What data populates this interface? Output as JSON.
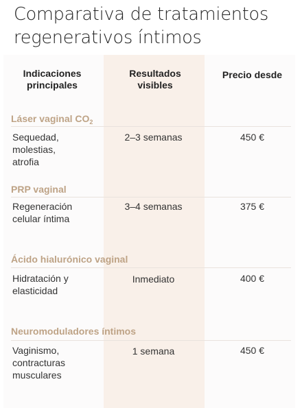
{
  "title": "Comparativa de tratamientos\nregenerativos íntimos",
  "columns": {
    "indications": "Indicaciones\nprincipales",
    "results": "Resultados\nvisibles",
    "price": "Precio desde"
  },
  "treatments": [
    {
      "name": "Láser vaginal CO",
      "name_sub": "2",
      "indications": "Sequedad,\nmolestias,\natrofia",
      "results": "2–3 semanas",
      "price": "450 €"
    },
    {
      "name": "PRP vaginal",
      "indications": "Regeneración\ncelular íntima",
      "results": "3–4 semanas",
      "price": "375 €"
    },
    {
      "name": "Ácido hialurónico vaginal",
      "indications": "Hidratación y\nelasticidad",
      "results": "Inmediato",
      "price": "400 €"
    },
    {
      "name": "Neuromoduladores íntimos",
      "indications": "Vaginismo,\ncontracturas\nmusculares",
      "results": "1 semana",
      "price": "450 €"
    }
  ],
  "colors": {
    "section_name": "#bea386",
    "highlight_column": "#f9f0e9",
    "title": "#222222"
  }
}
